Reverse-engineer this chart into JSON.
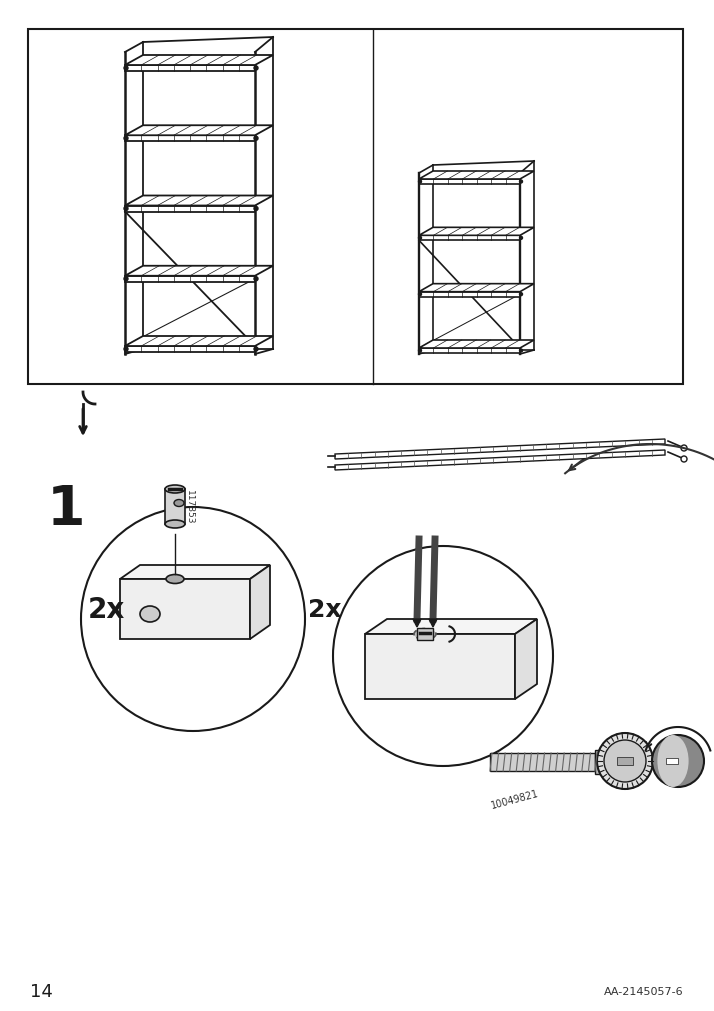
{
  "page_number": "14",
  "doc_code": "AA-2145057-6",
  "background_color": "#ffffff",
  "border_color": "#000000",
  "step_number": "1",
  "part_id_1": "117853",
  "part_id_2": "10049821",
  "qty_1": "2x",
  "qty_2": "2x"
}
